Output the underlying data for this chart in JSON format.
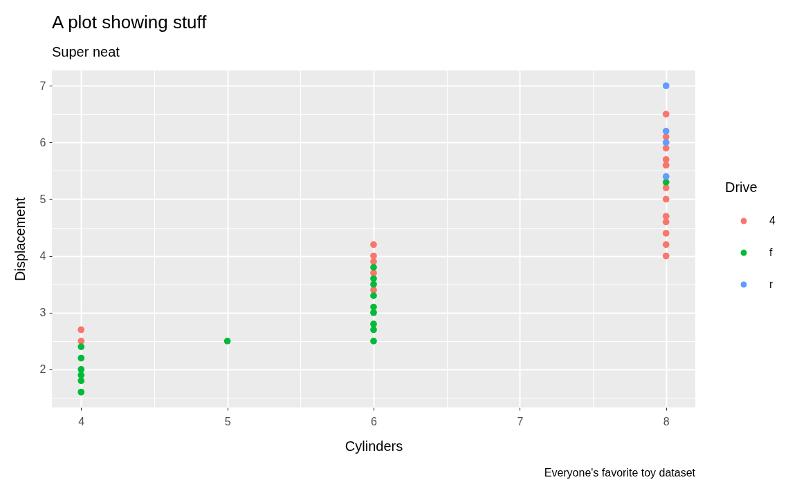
{
  "chart_data": {
    "type": "scatter",
    "title": "A plot showing stuff",
    "subtitle": "Super neat",
    "xlabel": "Cylinders",
    "ylabel": "Displacement",
    "legend_title": "Drive",
    "annotations": [
      "Everyone's favorite toy dataset"
    ],
    "series": [
      {
        "name": "4",
        "color": "#f8766d",
        "x": [
          4,
          4,
          6,
          6,
          6,
          6,
          6,
          8,
          8,
          8,
          8,
          8,
          8,
          8,
          8,
          8,
          8,
          8,
          8
        ],
        "values": [
          2.7,
          2.5,
          4.2,
          4.0,
          3.9,
          3.7,
          3.4,
          6.5,
          6.1,
          5.9,
          5.7,
          5.6,
          5.2,
          5.0,
          4.7,
          4.6,
          4.4,
          4.2,
          4.0
        ]
      },
      {
        "name": "f",
        "color": "#00ba38",
        "x": [
          4,
          4,
          4,
          4,
          4,
          4,
          5,
          6,
          6,
          6,
          6,
          6,
          6,
          6,
          6,
          6,
          8
        ],
        "values": [
          2.4,
          2.2,
          2.0,
          1.9,
          1.8,
          1.6,
          2.5,
          3.8,
          3.6,
          3.5,
          3.3,
          3.1,
          3.0,
          2.8,
          2.7,
          2.5,
          5.3
        ]
      },
      {
        "name": "r",
        "color": "#619cff",
        "x": [
          8,
          8,
          8,
          8
        ],
        "values": [
          7.0,
          6.2,
          6.0,
          5.4
        ]
      }
    ],
    "xlim": [
      3.8,
      8.2
    ],
    "xticks": [
      4,
      5,
      6,
      7,
      8
    ],
    "ylim": [
      1.33,
      7.27
    ],
    "yticks": [
      2,
      3,
      4,
      5,
      6,
      7
    ],
    "grid": true,
    "legend": "right",
    "marker": "circle"
  }
}
